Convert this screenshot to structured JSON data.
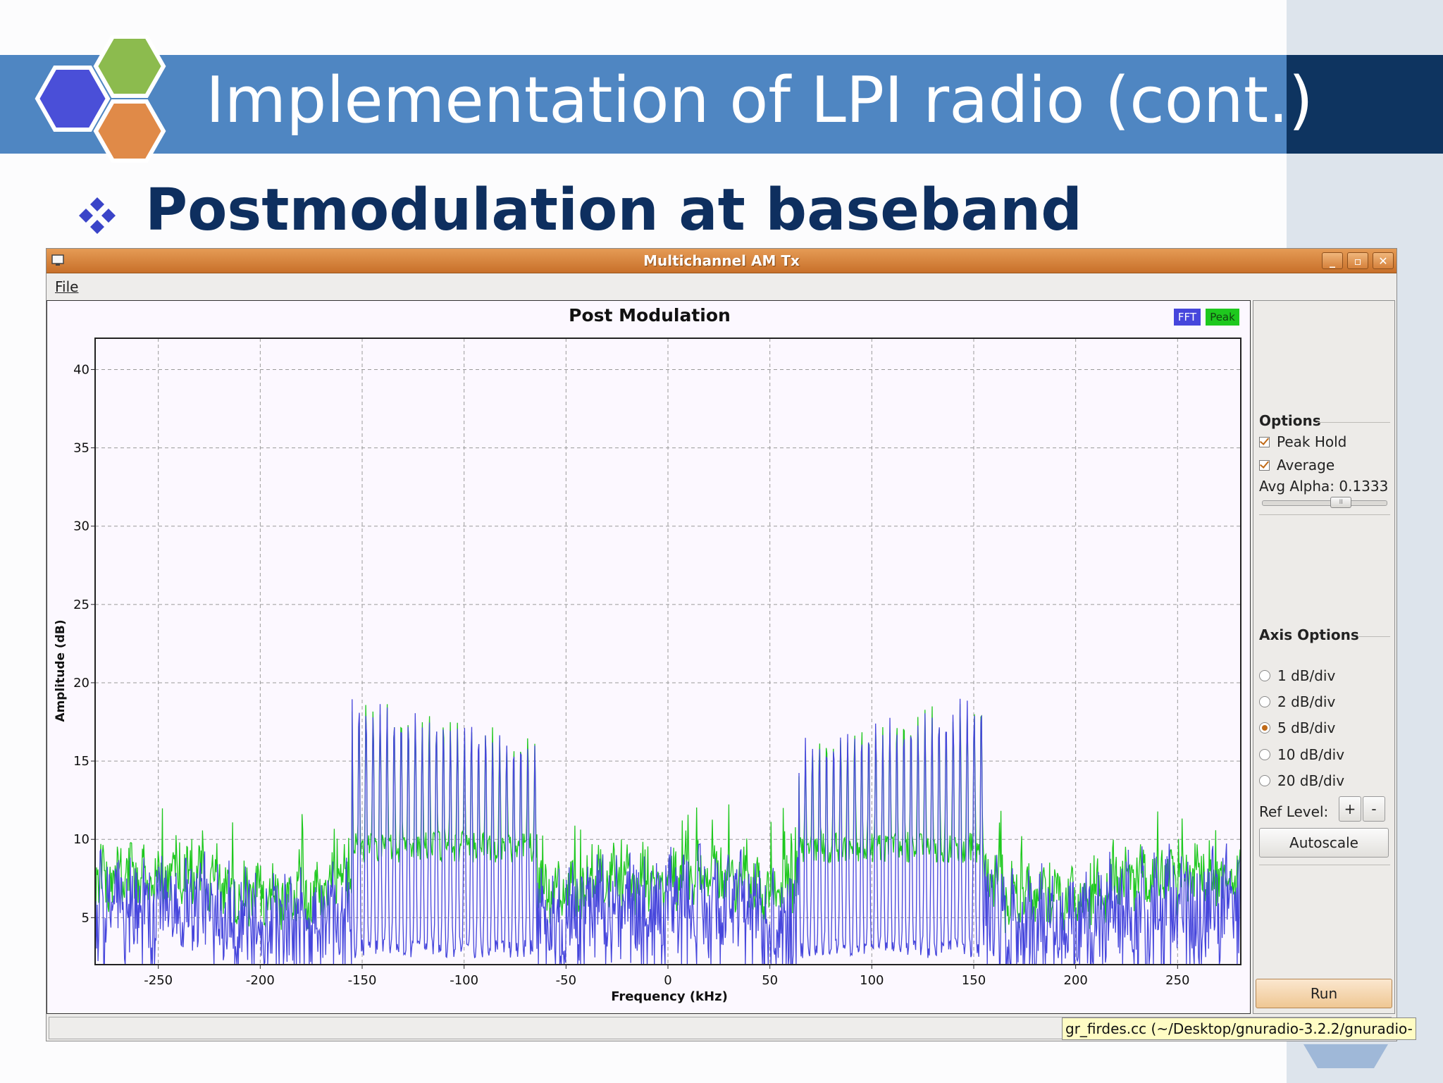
{
  "slide": {
    "title": "Implementation of LPI radio (cont.)",
    "subtitle": "Postmodulation at baseband",
    "colors": {
      "banner": "#4f86c2",
      "title_text": "#ffffff",
      "subtitle_text": "#0e2f5f",
      "dark_block": "#0e3460"
    }
  },
  "window": {
    "title": "Multichannel AM Tx",
    "menu": {
      "file": "File"
    },
    "controls": {
      "minimize": "_",
      "maximize": "▫",
      "close": "✕"
    }
  },
  "plot": {
    "title": "Post Modulation",
    "legend": [
      {
        "label": "FFT",
        "color": "#4646dc"
      },
      {
        "label": "Peak",
        "color": "#1ec81e"
      }
    ],
    "xlabel": "Frequency (kHz)",
    "ylabel": "Amplitude (dB)"
  },
  "chart_data": {
    "type": "line",
    "title": "Post Modulation",
    "xlabel": "Frequency (kHz)",
    "ylabel": "Amplitude (dB)",
    "xlim": [
      -281,
      281
    ],
    "ylim": [
      2,
      42
    ],
    "xticks": [
      -250,
      -200,
      -150,
      -100,
      -50,
      0,
      50,
      100,
      150,
      200,
      250
    ],
    "yticks": [
      5,
      10,
      15,
      20,
      25,
      30,
      35,
      40
    ],
    "grid": true,
    "legend_position": "top-right",
    "series": [
      {
        "name": "FFT",
        "color": "#4646dc",
        "floor_db": 6,
        "bands": [
          {
            "x_start": -155,
            "x_end": -64,
            "peak_start_db": 18.8,
            "peak_end_db": 16.0
          },
          {
            "x_start": 64,
            "x_end": 155,
            "peak_start_db": 16.0,
            "peak_end_db": 18.8
          }
        ]
      },
      {
        "name": "Peak",
        "color": "#1ec81e",
        "floor_db": 7.5,
        "bands": [
          {
            "x_start": -155,
            "x_end": -64,
            "peak_start_db": 18.8,
            "peak_end_db": 16.0
          },
          {
            "x_start": 64,
            "x_end": 155,
            "peak_start_db": 16.0,
            "peak_end_db": 18.8
          }
        ]
      }
    ]
  },
  "options": {
    "title": "Options",
    "peak_hold": "Peak Hold",
    "average": "Average",
    "avg_alpha_label": "Avg Alpha: 0.1333",
    "avg_alpha_value": 0.1333,
    "slider_handle_glyph": "II"
  },
  "axis_options": {
    "title": "Axis Options",
    "divs": [
      "1 dB/div",
      "2 dB/div",
      "5 dB/div",
      "10 dB/div",
      "20 dB/div"
    ],
    "selected": "5 dB/div",
    "ref_level": "Ref Level:",
    "plus": "+",
    "minus": "-",
    "autoscale": "Autoscale"
  },
  "run_button": "Run",
  "status": {
    "tooltip": "gr_firdes.cc (~/Desktop/gnuradio-3.2.2/gnuradio-"
  }
}
